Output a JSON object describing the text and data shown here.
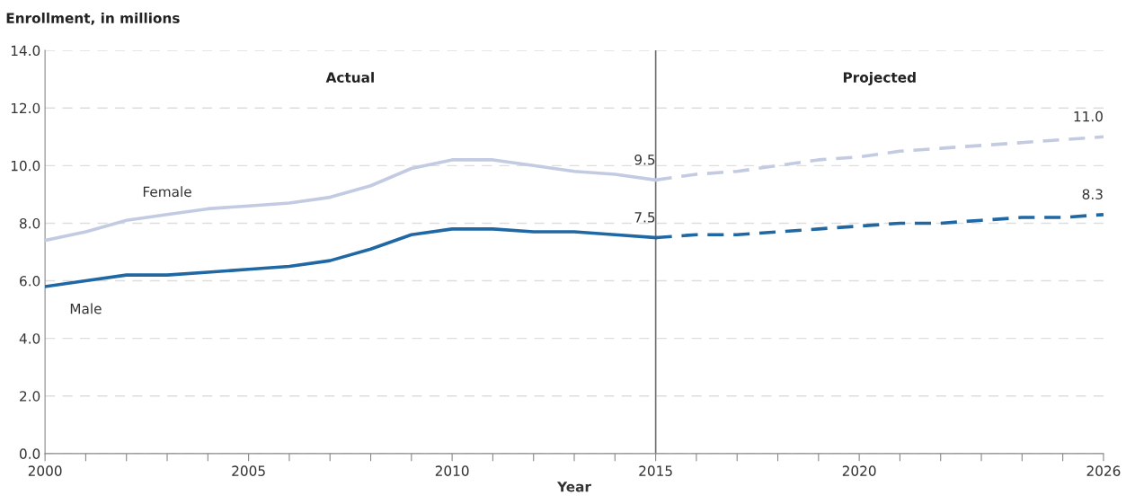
{
  "chart_data": {
    "type": "line",
    "ylabel": "Enrollment, in millions",
    "xlabel": "Year",
    "series": [
      {
        "name": "Female",
        "color": "#c3cbe3",
        "line_style": "solid",
        "x": [
          2000,
          2001,
          2002,
          2003,
          2004,
          2005,
          2006,
          2007,
          2008,
          2009,
          2010,
          2011,
          2012,
          2013,
          2014,
          2015
        ],
        "values": [
          7.4,
          7.7,
          8.1,
          8.3,
          8.5,
          8.6,
          8.7,
          8.9,
          9.3,
          9.9,
          10.2,
          10.2,
          10.0,
          9.8,
          9.7,
          9.5
        ],
        "value_labels": [
          null,
          null,
          null,
          null,
          null,
          null,
          null,
          null,
          null,
          null,
          null,
          null,
          null,
          null,
          null,
          "9.5"
        ]
      },
      {
        "color": "#c3cbe3",
        "line_style": "dashed",
        "x": [
          2015,
          2016,
          2017,
          2018,
          2019,
          2020,
          2021,
          2022,
          2023,
          2024,
          2025,
          2026
        ],
        "values": [
          9.5,
          9.7,
          9.8,
          10.0,
          10.2,
          10.3,
          10.5,
          10.6,
          10.7,
          10.8,
          10.9,
          11.0
        ],
        "value_labels": [
          null,
          null,
          null,
          null,
          null,
          null,
          null,
          null,
          null,
          null,
          null,
          "11.0"
        ]
      },
      {
        "name": "Male",
        "color": "#1f68a4",
        "line_style": "solid",
        "x": [
          2000,
          2001,
          2002,
          2003,
          2004,
          2005,
          2006,
          2007,
          2008,
          2009,
          2010,
          2011,
          2012,
          2013,
          2014,
          2015
        ],
        "values": [
          5.8,
          6.0,
          6.2,
          6.2,
          6.3,
          6.4,
          6.5,
          6.7,
          7.1,
          7.6,
          7.8,
          7.8,
          7.7,
          7.7,
          7.6,
          7.5
        ],
        "value_labels": [
          null,
          null,
          null,
          null,
          null,
          null,
          null,
          null,
          null,
          null,
          null,
          null,
          null,
          null,
          null,
          "7.5"
        ]
      },
      {
        "color": "#1f68a4",
        "line_style": "dashed",
        "x": [
          2015,
          2016,
          2017,
          2018,
          2019,
          2020,
          2021,
          2022,
          2023,
          2024,
          2025,
          2026
        ],
        "values": [
          7.5,
          7.6,
          7.6,
          7.7,
          7.8,
          7.9,
          8.0,
          8.0,
          8.1,
          8.2,
          8.2,
          8.3
        ],
        "value_labels": [
          null,
          null,
          null,
          null,
          null,
          null,
          null,
          null,
          null,
          null,
          null,
          "8.3"
        ]
      }
    ],
    "xlim": [
      2000,
      2026
    ],
    "xticks": [
      2000,
      {
        "value": 2001,
        "label": null
      },
      {
        "value": 2002,
        "label": null
      },
      {
        "value": 2003,
        "label": null
      },
      {
        "value": 2004,
        "label": null
      },
      2005,
      {
        "value": 2006,
        "label": null
      },
      {
        "value": 2007,
        "label": null
      },
      {
        "value": 2008,
        "label": null
      },
      {
        "value": 2009,
        "label": null
      },
      2010,
      {
        "value": 2011,
        "label": null
      },
      {
        "value": 2012,
        "label": null
      },
      {
        "value": 2013,
        "label": null
      },
      {
        "value": 2014,
        "label": null
      },
      2015,
      {
        "value": 2016,
        "label": null
      },
      {
        "value": 2017,
        "label": null
      },
      {
        "value": 2018,
        "label": null
      },
      {
        "value": 2019,
        "label": null
      },
      2020,
      {
        "value": 2021,
        "label": null
      },
      {
        "value": 2022,
        "label": null
      },
      {
        "value": 2023,
        "label": null
      },
      {
        "value": 2024,
        "label": null
      },
      {
        "value": 2025,
        "label": null
      },
      2026
    ],
    "ylim": [
      0,
      14
    ],
    "yticks": [
      {
        "value": 0,
        "label": "0.0"
      },
      {
        "value": 2,
        "label": "2.0"
      },
      {
        "value": 4,
        "label": "4.0"
      },
      {
        "value": 6,
        "label": "6.0"
      },
      {
        "value": 8,
        "label": "8.0"
      },
      {
        "value": 10,
        "label": "10.0"
      },
      {
        "value": 12,
        "label": "12.0"
      },
      {
        "value": 14,
        "label": "14.0"
      }
    ],
    "ref_lines": [
      {
        "axis": "x",
        "value": 2015,
        "color": "#707070",
        "line_style": "solid"
      }
    ],
    "annotations": [
      "Actual",
      "Projected"
    ],
    "grid": "y",
    "legend": false,
    "marker": "none"
  }
}
